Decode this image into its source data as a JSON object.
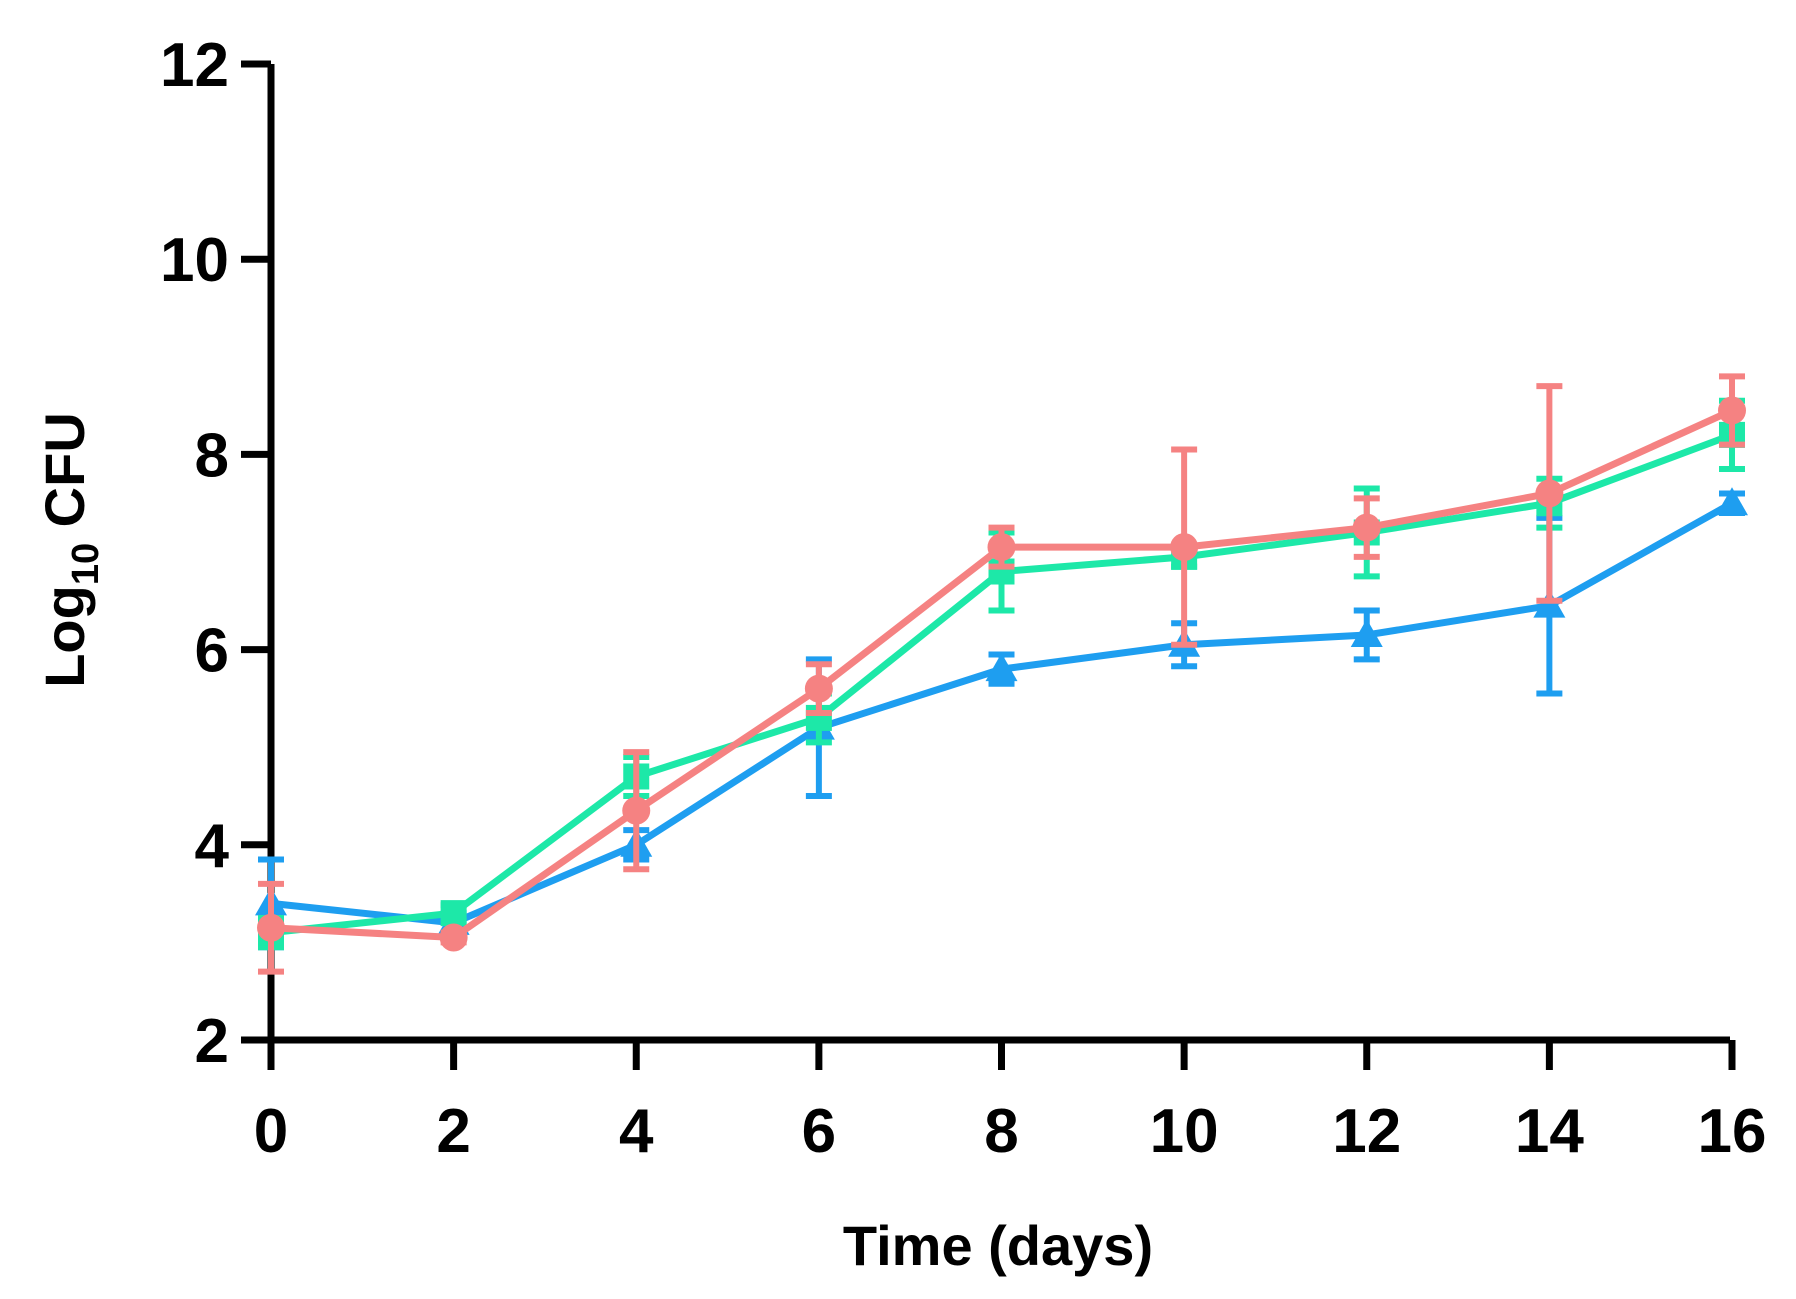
{
  "chart_data": {
    "type": "line",
    "title": "",
    "xlabel": "Time (days)",
    "ylabel_main": "Log",
    "ylabel_sub": "10",
    "ylabel_rest": " CFU",
    "x": [
      0,
      2,
      4,
      6,
      8,
      10,
      12,
      14,
      16
    ],
    "xlim": [
      0,
      16
    ],
    "ylim": [
      2,
      12
    ],
    "xticks": [
      "0",
      "2",
      "4",
      "6",
      "8",
      "10",
      "12",
      "14",
      "16"
    ],
    "yticks": [
      "2",
      "4",
      "6",
      "8",
      "10",
      "12"
    ],
    "grid": false,
    "legend": "none",
    "series": [
      {
        "name": "series-blue",
        "color": "#1e9ef0",
        "marker": "triangle",
        "values": [
          3.4,
          3.2,
          4.0,
          5.2,
          5.8,
          6.05,
          6.15,
          6.45,
          7.5
        ],
        "errors": [
          0.45,
          0.1,
          0.15,
          0.7,
          0.15,
          0.22,
          0.25,
          0.9,
          0.1
        ]
      },
      {
        "name": "series-green",
        "color": "#1de8a8",
        "marker": "square",
        "values": [
          3.1,
          3.3,
          4.7,
          5.3,
          6.8,
          6.95,
          7.2,
          7.5,
          8.2
        ],
        "errors": [
          0.15,
          0.08,
          0.2,
          0.25,
          0.4,
          0.1,
          0.45,
          0.25,
          0.35
        ]
      },
      {
        "name": "series-red",
        "color": "#f58282",
        "marker": "circle",
        "values": [
          3.15,
          3.05,
          4.35,
          5.6,
          7.05,
          7.05,
          7.25,
          7.6,
          8.45
        ],
        "errors": [
          0.45,
          0.05,
          0.6,
          0.25,
          0.2,
          1.0,
          0.3,
          1.1,
          0.35
        ]
      }
    ]
  }
}
